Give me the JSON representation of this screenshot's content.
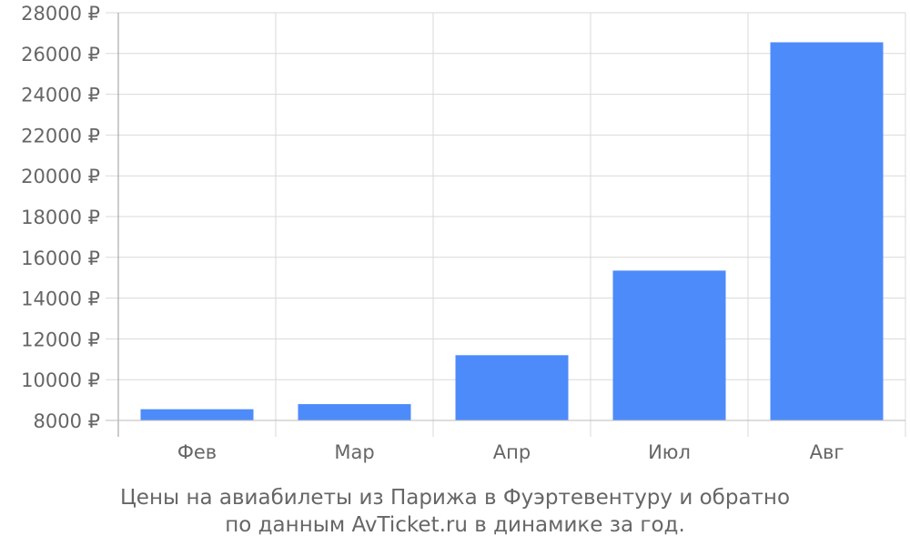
{
  "chart_data": {
    "type": "bar",
    "categories": [
      "Фев",
      "Мар",
      "Апр",
      "Июл",
      "Авг"
    ],
    "values": [
      8550,
      8800,
      11200,
      15350,
      26550
    ],
    "ylim": [
      8000,
      28000
    ],
    "yticks": [
      8000,
      10000,
      12000,
      14000,
      16000,
      18000,
      20000,
      22000,
      24000,
      26000,
      28000
    ],
    "ytick_labels": [
      "8000 ₽",
      "10000 ₽",
      "12000 ₽",
      "14000 ₽",
      "16000 ₽",
      "18000 ₽",
      "20000 ₽",
      "22000 ₽",
      "24000 ₽",
      "26000 ₽",
      "28000 ₽"
    ],
    "grid": true,
    "bar_color": "#4d8bfb",
    "caption_lines": [
      "Цены на авиабилеты из Парижа в Фуэртевентуру и обратно",
      "по данным AvTicket.ru в динамике за год."
    ]
  }
}
